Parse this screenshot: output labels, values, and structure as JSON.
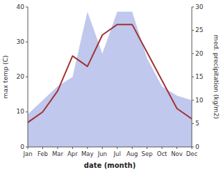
{
  "chart_data": {
    "type": "line",
    "categories": [
      "Jan",
      "Feb",
      "Mar",
      "Apr",
      "May",
      "Jun",
      "Jul",
      "Aug",
      "Sep",
      "Oct",
      "Nov",
      "Dec"
    ],
    "xlabel": "date (month)",
    "ylabel": "max temp (C)",
    "y2label": "med. precipitation (kg/m2)",
    "ylim": [
      0,
      40
    ],
    "yticks": [
      0,
      10,
      20,
      30,
      40
    ],
    "y2lim": [
      0,
      30
    ],
    "y2ticks": [
      0,
      5,
      10,
      15,
      20,
      25,
      30
    ],
    "grid": false,
    "series": [
      {
        "type": "area",
        "axis": "y2",
        "color": "#c0c8ee",
        "values": [
          7,
          10,
          13,
          15,
          29,
          20,
          29,
          29,
          19,
          13,
          11,
          10
        ]
      },
      {
        "type": "line",
        "color": "#a03333",
        "values": [
          7,
          10,
          16,
          26,
          23,
          32,
          35,
          35,
          27,
          19,
          11,
          8
        ]
      }
    ]
  }
}
